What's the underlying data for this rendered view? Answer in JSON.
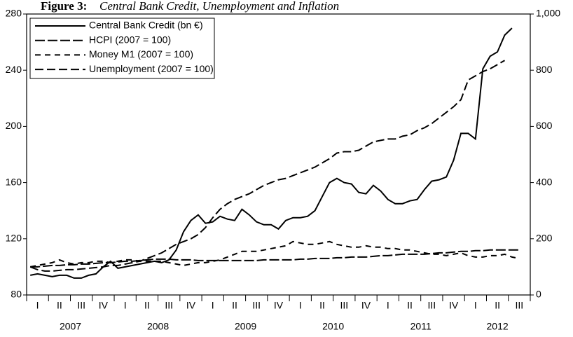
{
  "chart_data": {
    "type": "line",
    "title_label": "Figure 3:",
    "title": "Central Bank Credit, Unemployment and Inflation",
    "categories": [
      null,
      "I",
      null,
      null,
      "II",
      null,
      null,
      "III",
      null,
      null,
      "IV",
      null,
      null,
      "I",
      null,
      null,
      "II",
      null,
      null,
      "III",
      null,
      null,
      "IV",
      null,
      null,
      "I",
      null,
      null,
      "II",
      null,
      null,
      "III",
      null,
      null,
      "IV",
      null,
      null,
      "I",
      null,
      null,
      "II",
      null,
      null,
      "III",
      null,
      null,
      "IV",
      null,
      null,
      "I",
      null,
      null,
      "II",
      null,
      null,
      "III",
      null,
      null,
      "IV",
      null,
      null,
      "I",
      null,
      null,
      "II",
      null,
      null,
      "III",
      null
    ],
    "years": [
      2007,
      2008,
      2009,
      2010,
      2011,
      2012
    ],
    "ylim": [
      80,
      280
    ],
    "yticks": [
      80,
      120,
      160,
      200,
      240,
      280
    ],
    "y2lim": [
      0,
      1000
    ],
    "y2ticks": [
      0,
      200,
      400,
      600,
      800,
      {
        "value": 1000,
        "label": "1,000"
      }
    ],
    "legend": "upper left",
    "series": [
      {
        "name": "Central Bank Credit (bn €)",
        "color": "#000000",
        "dash": "solid",
        "axis": "y2",
        "values": [
          70,
          75,
          70,
          65,
          70,
          70,
          60,
          60,
          70,
          75,
          100,
          120,
          95,
          100,
          105,
          110,
          115,
          120,
          115,
          125,
          160,
          225,
          265,
          285,
          255,
          260,
          280,
          270,
          265,
          305,
          285,
          260,
          250,
          250,
          235,
          265,
          275,
          275,
          280,
          300,
          350,
          400,
          415,
          400,
          395,
          365,
          360,
          390,
          370,
          340,
          325,
          325,
          335,
          340,
          375,
          405,
          410,
          420,
          480,
          575,
          575,
          555,
          805,
          850,
          865,
          925,
          950,
          null,
          null
        ]
      },
      {
        "name": "HCPI (2007 = 100)",
        "color": "#000000",
        "dash": "14 4",
        "values": [
          100,
          100,
          100.5,
          101,
          101,
          101.5,
          101.5,
          102,
          102,
          102.5,
          103,
          103,
          103.5,
          104,
          104,
          104.5,
          105,
          105.5,
          105.5,
          105.5,
          105,
          105,
          105,
          104.5,
          104.5,
          104.5,
          104.5,
          104.5,
          104.5,
          104.5,
          104.5,
          104.5,
          105,
          105,
          105,
          105,
          105,
          105.5,
          105.5,
          106,
          106,
          106,
          106.5,
          106.5,
          107,
          107,
          107,
          107.5,
          108,
          108,
          108.5,
          109,
          109,
          109,
          109,
          109.5,
          110,
          110,
          110.5,
          111,
          111,
          111.5,
          111.5,
          112,
          112,
          112,
          112,
          112,
          null
        ]
      },
      {
        "name": "Money M1 (2007 = 100)",
        "color": "#000000",
        "dash": "8 6",
        "values": [
          100,
          101,
          102,
          103,
          105,
          103,
          102,
          103,
          103,
          104,
          104,
          103,
          104,
          105,
          105,
          104,
          104,
          104,
          104,
          103,
          102,
          101,
          102,
          103,
          103,
          104,
          105,
          107,
          109,
          111,
          111,
          111,
          112,
          113,
          114,
          115,
          118,
          117,
          116,
          116,
          117,
          118,
          116,
          115,
          114,
          114,
          115,
          114,
          114,
          113,
          113,
          112,
          112,
          111,
          110,
          109,
          109,
          108,
          109,
          110,
          108,
          107,
          107,
          108,
          108,
          109,
          107,
          106,
          null
        ]
      },
      {
        "name": "Unemployment (2007 = 100)",
        "color": "#000000",
        "dash": "12 5",
        "values": [
          100,
          98,
          97,
          97,
          97.5,
          98,
          98,
          98.5,
          99,
          99.5,
          100,
          101,
          101,
          102,
          103,
          104,
          106,
          108,
          110,
          113,
          116,
          118,
          120,
          123,
          128,
          135,
          141,
          145,
          148,
          150,
          152,
          155,
          158,
          160,
          162,
          163,
          165,
          167,
          169,
          171,
          174,
          177,
          181,
          182,
          182,
          183,
          186,
          189,
          190,
          191,
          191,
          193,
          194,
          197,
          199,
          202,
          206,
          210,
          214,
          219,
          233,
          236,
          239,
          241,
          244,
          247,
          null,
          null,
          null
        ]
      }
    ]
  }
}
